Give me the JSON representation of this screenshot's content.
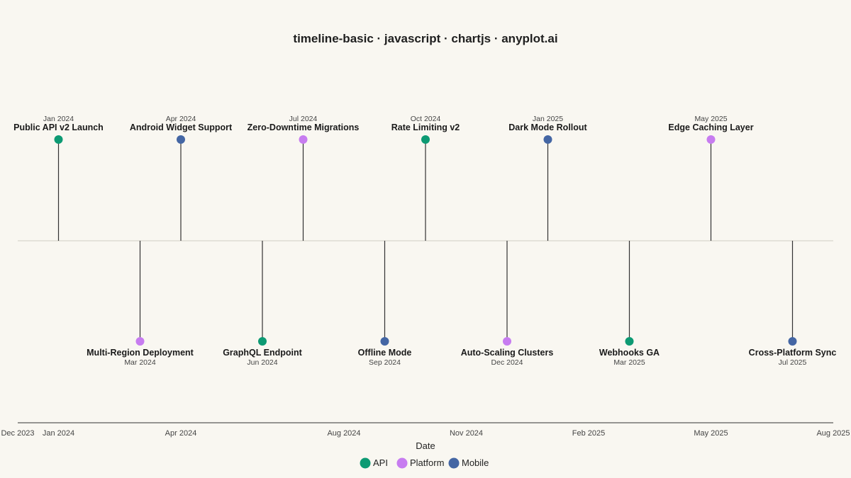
{
  "chart_data": {
    "type": "scatter",
    "title": "timeline-basic · javascript · chartjs · anyplot.ai",
    "xlabel": "Date",
    "ylabel": "",
    "grid": false,
    "legend_position": "bottom",
    "xlim": [
      "Dec 2023",
      "Aug 2025"
    ],
    "x_ticks": [
      "Dec 2023",
      "Jan 2024",
      "Apr 2024",
      "Aug 2024",
      "Nov 2024",
      "Feb 2025",
      "May 2025",
      "Aug 2025"
    ],
    "categories": [
      "API",
      "Platform",
      "Mobile"
    ],
    "colors": {
      "API": "#0d9a73",
      "Platform": "#c77cf0",
      "Mobile": "#4466a4"
    },
    "events": [
      {
        "label": "Public API v2 Launch",
        "date": "Jan 2024",
        "category": "API",
        "side": "above"
      },
      {
        "label": "Multi-Region Deployment",
        "date": "Mar 2024",
        "category": "Platform",
        "side": "below"
      },
      {
        "label": "Android Widget Support",
        "date": "Apr 2024",
        "category": "Mobile",
        "side": "above"
      },
      {
        "label": "GraphQL Endpoint",
        "date": "Jun 2024",
        "category": "API",
        "side": "below"
      },
      {
        "label": "Zero-Downtime Migrations",
        "date": "Jul 2024",
        "category": "Platform",
        "side": "above"
      },
      {
        "label": "Offline Mode",
        "date": "Sep 2024",
        "category": "Mobile",
        "side": "below"
      },
      {
        "label": "Rate Limiting v2",
        "date": "Oct 2024",
        "category": "API",
        "side": "above"
      },
      {
        "label": "Auto-Scaling Clusters",
        "date": "Dec 2024",
        "category": "Platform",
        "side": "below"
      },
      {
        "label": "Dark Mode Rollout",
        "date": "Jan 2025",
        "category": "Mobile",
        "side": "above"
      },
      {
        "label": "Webhooks GA",
        "date": "Mar 2025",
        "category": "API",
        "side": "below"
      },
      {
        "label": "Edge Caching Layer",
        "date": "May 2025",
        "category": "Platform",
        "side": "above"
      },
      {
        "label": "Cross-Platform Sync",
        "date": "Jul 2025",
        "category": "Mobile",
        "side": "below"
      }
    ]
  }
}
